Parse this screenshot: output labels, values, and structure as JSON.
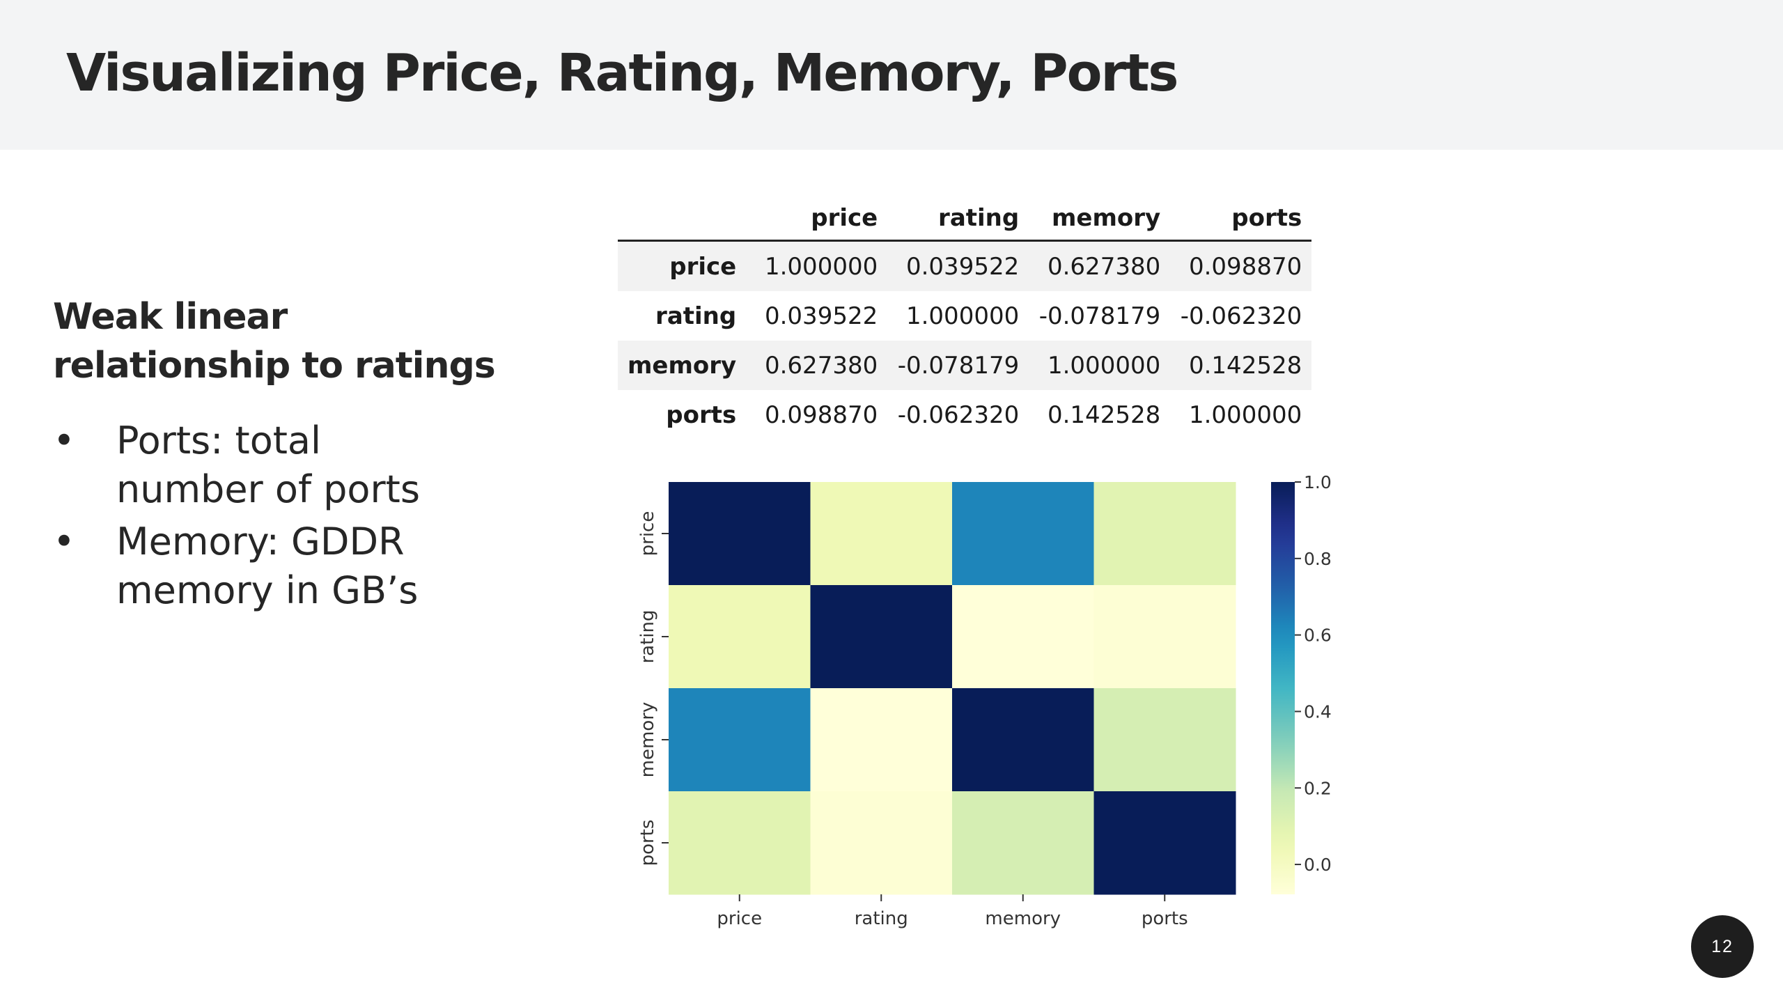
{
  "slide": {
    "title": "Visualizing Price, Rating, Memory, Ports",
    "subtitle": "Weak linear relationship to ratings",
    "bullets": [
      "Ports: total number of ports",
      "Memory: GDDR memory in GB’s"
    ],
    "bullet_symbol": "•",
    "page_number": "12"
  },
  "table": {
    "columns": [
      "price",
      "rating",
      "memory",
      "ports"
    ],
    "rows": [
      {
        "label": "price",
        "cells": [
          "1.000000",
          "0.039522",
          "0.627380",
          "0.098870"
        ]
      },
      {
        "label": "rating",
        "cells": [
          "0.039522",
          "1.000000",
          "-0.078179",
          "-0.062320"
        ]
      },
      {
        "label": "memory",
        "cells": [
          "0.627380",
          "-0.078179",
          "1.000000",
          "0.142528"
        ]
      },
      {
        "label": "ports",
        "cells": [
          "0.098870",
          "-0.062320",
          "0.142528",
          "1.000000"
        ]
      }
    ]
  },
  "chart_data": {
    "type": "heatmap",
    "x": [
      "price",
      "rating",
      "memory",
      "ports"
    ],
    "y": [
      "price",
      "rating",
      "memory",
      "ports"
    ],
    "values": [
      [
        1.0,
        0.039522,
        0.62738,
        0.09887
      ],
      [
        0.039522,
        1.0,
        -0.078179,
        -0.06232
      ],
      [
        0.62738,
        -0.078179,
        1.0,
        0.142528
      ],
      [
        0.09887,
        -0.06232,
        0.142528,
        1.0
      ]
    ],
    "colormap": "YlGnBu",
    "colorbar": {
      "ticks": [
        "0.0",
        "0.2",
        "0.4",
        "0.6",
        "0.8",
        "1.0"
      ],
      "tick_values": [
        0,
        0.2,
        0.4,
        0.6,
        0.8,
        1.0
      ],
      "range": [
        -0.078179,
        1.0
      ]
    },
    "title": "",
    "xlabel": "",
    "ylabel": ""
  }
}
